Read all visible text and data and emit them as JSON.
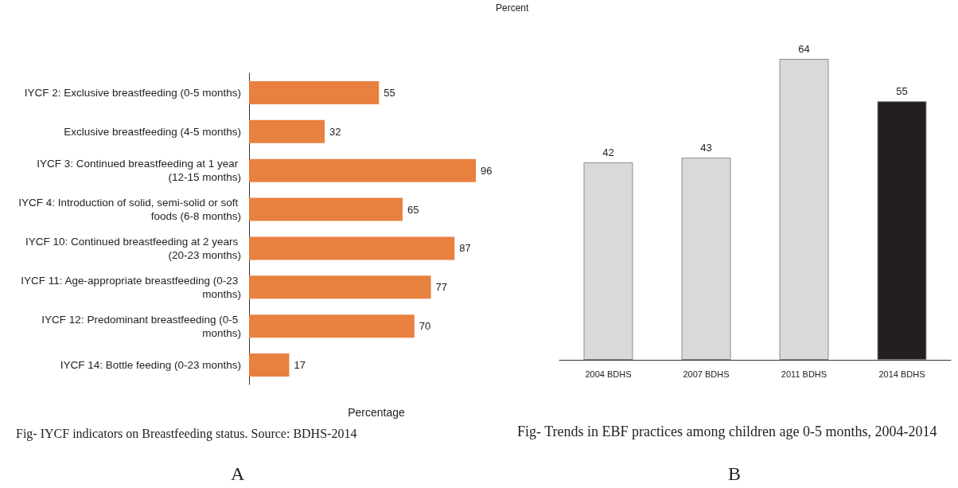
{
  "chart_data": [
    {
      "type": "bar",
      "orientation": "horizontal",
      "xlabel": "Percentage",
      "color": "#e8803f",
      "data_labels": true,
      "categories": [
        "IYCF 2: Exclusive breastfeeding (0-5 months)",
        "Exclusive breastfeeding (4-5 months)",
        "IYCF 3: Continued breastfeeding at 1 year (12-15 months)",
        "IYCF 4: Introduction of solid, semi-solid or soft foods (6-8 months)",
        "IYCF 10: Continued breastfeeding at 2 years (20-23 months)",
        "IYCF 11: Age-appropriate breastfeeding (0-23 months)",
        "IYCF 12: Predominant breastfeeding (0-5 months)",
        "IYCF 14: Bottle feeding (0-23 months)"
      ],
      "values": [
        55,
        32,
        96,
        65,
        87,
        77,
        70,
        17
      ],
      "annotations": [
        "Fig-   IYCF indicators on Breastfeeding status. Source: BDHS-2014",
        "A"
      ]
    },
    {
      "type": "bar",
      "ylabel": "Percent",
      "data_labels": true,
      "categories": [
        "2004 BDHS",
        "2007 BDHS",
        "2011 BDHS",
        "2014 BDHS"
      ],
      "values": [
        42,
        43,
        64,
        55
      ],
      "colors": [
        "#d9d9d9",
        "#d9d9d9",
        "#d9d9d9",
        "#231f20"
      ],
      "annotations": [
        "Fig- Trends in EBF practices among children age 0-5 months, 2004-2014",
        "B"
      ]
    }
  ]
}
